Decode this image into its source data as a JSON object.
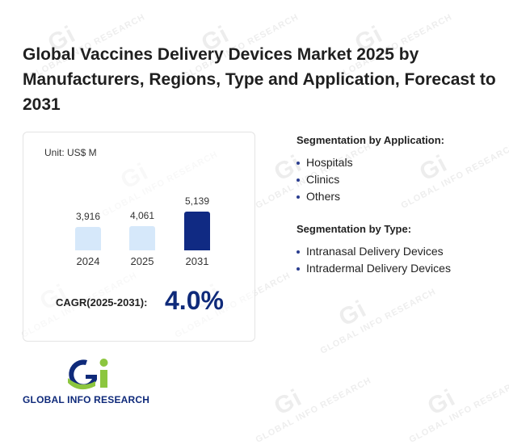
{
  "title": "Global Vaccines Delivery Devices Market 2025 by Manufacturers, Regions, Type and Application, Forecast to 2031",
  "colors": {
    "bar_light": "#d6e8fa",
    "bar_dark": "#102a83",
    "cagr": "#0f2a7a",
    "bullet": "#2a3d8f"
  },
  "chart_data": {
    "type": "bar",
    "unit_label": "Unit: US$ M",
    "categories": [
      "2024",
      "2025",
      "2031"
    ],
    "values": [
      3916,
      4061,
      5139
    ],
    "value_labels": [
      "3,916",
      "4,061",
      "5,139"
    ],
    "highlight": [
      false,
      false,
      true
    ],
    "title": "",
    "xlabel": "",
    "ylabel": ""
  },
  "cagr": {
    "label": "CAGR(2025-2031):",
    "value": "4.0%"
  },
  "segmentation": {
    "application": {
      "title": "Segmentation by Application:",
      "items": [
        "Hospitals",
        "Clinics",
        "Others"
      ]
    },
    "type": {
      "title": "Segmentation by Type:",
      "items": [
        "Intranasal Delivery Devices",
        "Intradermal Delivery Devices"
      ]
    }
  },
  "logo": {
    "text": "GLOBAL INFO RESEARCH",
    "icon": "gi-logo-icon"
  }
}
